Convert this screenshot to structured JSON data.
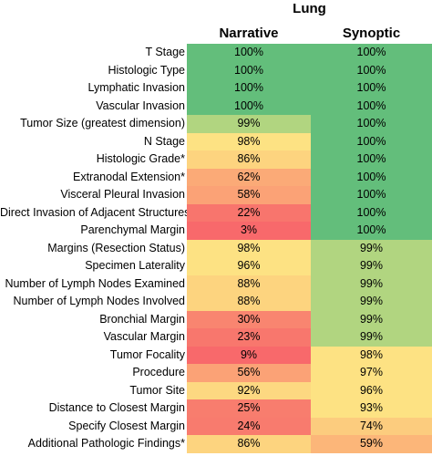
{
  "chart_data": {
    "type": "heatmap",
    "title": "Lung",
    "columns": [
      "Narrative",
      "Synoptic"
    ],
    "rows": [
      {
        "label": "T Stage",
        "narrative": "100%",
        "synoptic": "100%"
      },
      {
        "label": "Histologic Type",
        "narrative": "100%",
        "synoptic": "100%"
      },
      {
        "label": "Lymphatic Invasion",
        "narrative": "100%",
        "synoptic": "100%"
      },
      {
        "label": "Vascular Invasion",
        "narrative": "100%",
        "synoptic": "100%"
      },
      {
        "label": "Tumor Size (greatest dimension)",
        "narrative": "99%",
        "synoptic": "100%"
      },
      {
        "label": "N Stage",
        "narrative": "98%",
        "synoptic": "100%"
      },
      {
        "label": "Histologic Grade*",
        "narrative": "86%",
        "synoptic": "100%"
      },
      {
        "label": "Extranodal Extension*",
        "narrative": "62%",
        "synoptic": "100%"
      },
      {
        "label": "Visceral Pleural Invasion",
        "narrative": "58%",
        "synoptic": "100%"
      },
      {
        "label": "Direct Invasion of Adjacent Structures",
        "narrative": "22%",
        "synoptic": "100%"
      },
      {
        "label": "Parenchymal Margin",
        "narrative": "3%",
        "synoptic": "100%"
      },
      {
        "label": "Margins (Resection Status)",
        "narrative": "98%",
        "synoptic": "99%"
      },
      {
        "label": "Specimen Laterality",
        "narrative": "96%",
        "synoptic": "99%"
      },
      {
        "label": "Number of Lymph Nodes Examined",
        "narrative": "88%",
        "synoptic": "99%"
      },
      {
        "label": "Number of Lymph Nodes Involved",
        "narrative": "88%",
        "synoptic": "99%"
      },
      {
        "label": "Bronchial Margin",
        "narrative": "30%",
        "synoptic": "99%"
      },
      {
        "label": "Vascular Margin",
        "narrative": "23%",
        "synoptic": "99%"
      },
      {
        "label": "Tumor Focality",
        "narrative": "9%",
        "synoptic": "98%"
      },
      {
        "label": "Procedure",
        "narrative": "56%",
        "synoptic": "97%"
      },
      {
        "label": "Tumor Site",
        "narrative": "92%",
        "synoptic": "96%"
      },
      {
        "label": "Distance to Closest Margin",
        "narrative": "25%",
        "synoptic": "93%"
      },
      {
        "label": "Specify Closest Margin",
        "narrative": "24%",
        "synoptic": "74%"
      },
      {
        "label": "Additional Pathologic Findings*",
        "narrative": "86%",
        "synoptic": "59%"
      }
    ],
    "colors": {
      "narrative": [
        "#63be7b",
        "#63be7b",
        "#63be7b",
        "#63be7b",
        "#b1d580",
        "#fde283",
        "#fdd47f",
        "#fbaa77",
        "#fba276",
        "#f8756d",
        "#f8696b",
        "#fde283",
        "#fde283",
        "#fdd47f",
        "#fdd47f",
        "#f98570",
        "#f8776d",
        "#f8696b",
        "#fba276",
        "#fdd881",
        "#f87d6e",
        "#f87b6e",
        "#fdd47f"
      ],
      "synoptic": [
        "#63be7b",
        "#63be7b",
        "#63be7b",
        "#63be7b",
        "#63be7b",
        "#63be7b",
        "#63be7b",
        "#63be7b",
        "#63be7b",
        "#63be7b",
        "#63be7b",
        "#b1d580",
        "#b1d580",
        "#b1d580",
        "#b1d580",
        "#b1d580",
        "#b1d580",
        "#fde283",
        "#fde283",
        "#fde283",
        "#fde283",
        "#fccc7e",
        "#fcb679"
      ]
    },
    "legend": "none",
    "grid": false
  }
}
